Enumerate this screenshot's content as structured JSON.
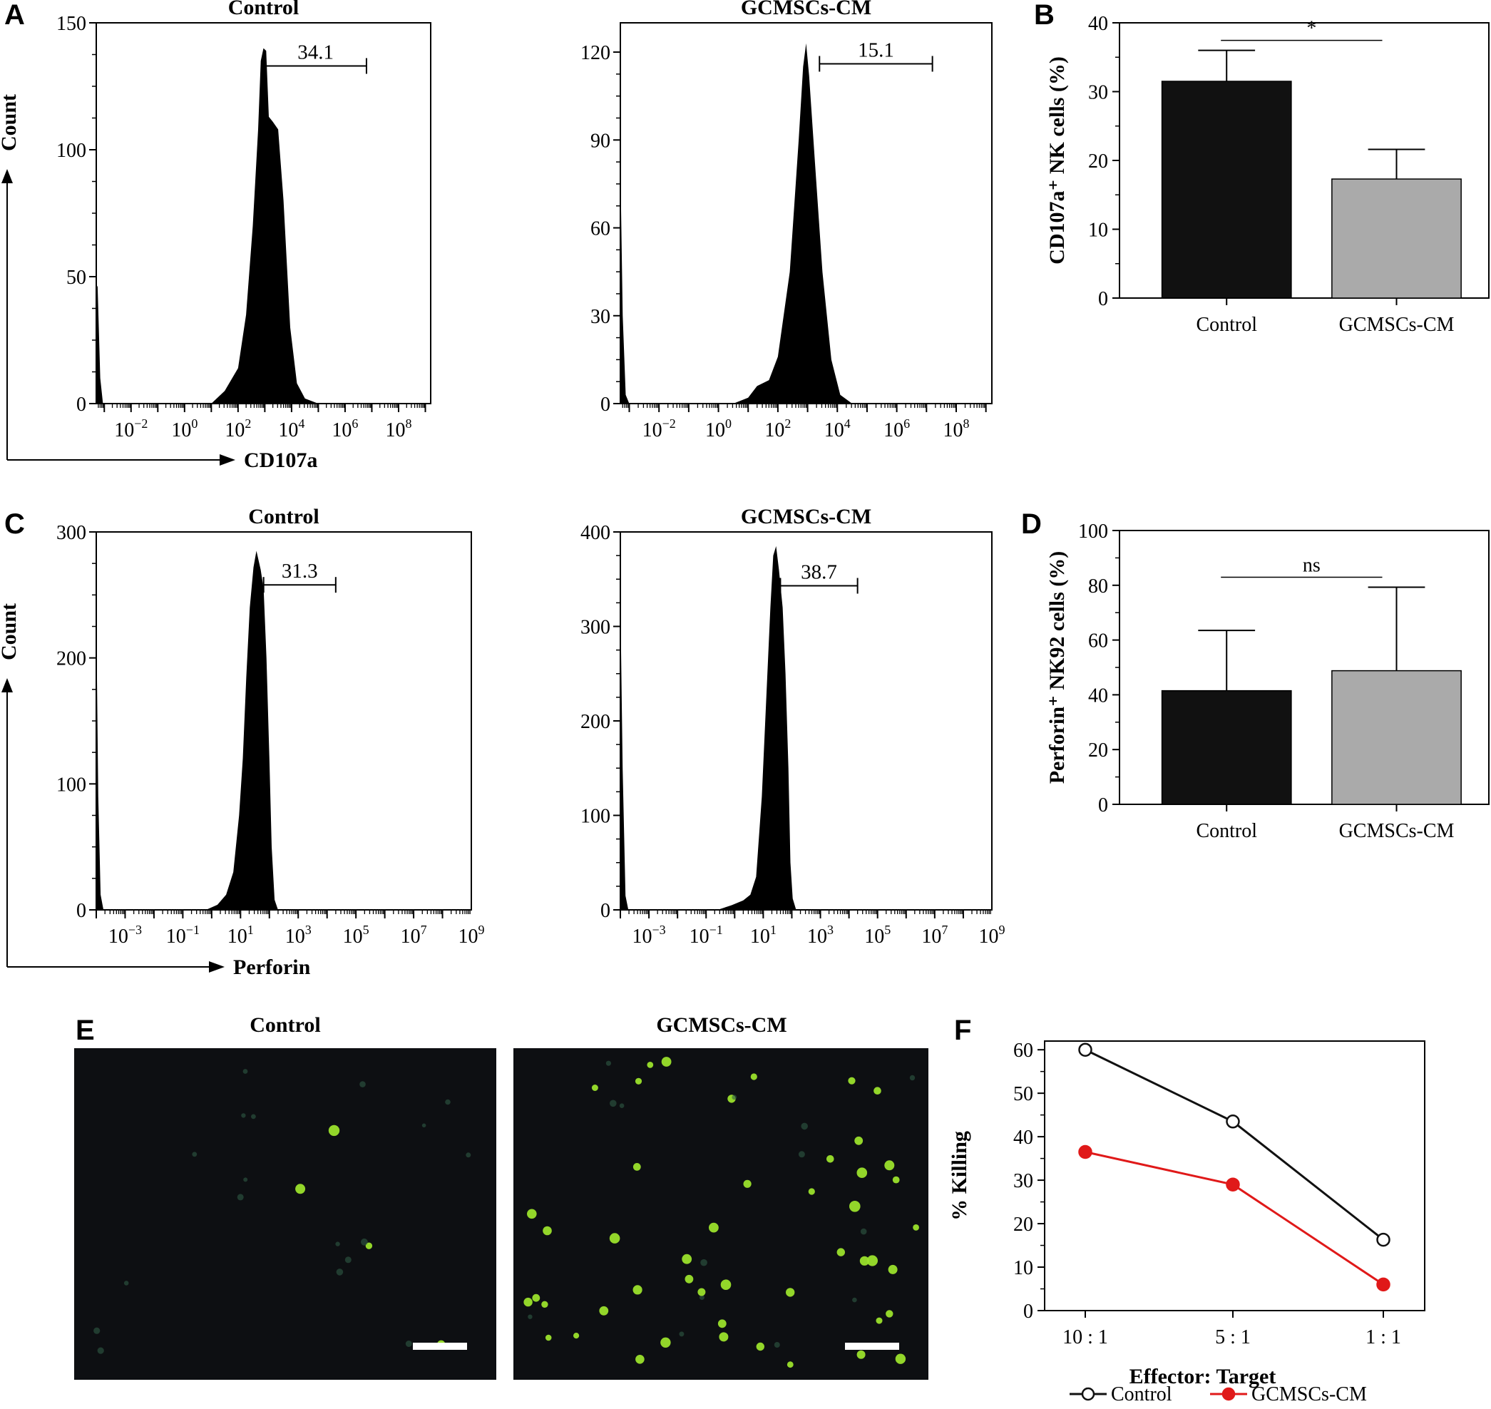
{
  "figure": {
    "panels": {
      "A": {
        "letter": "A"
      },
      "B": {
        "letter": "B"
      },
      "C": {
        "letter": "C"
      },
      "D": {
        "letter": "D"
      },
      "E": {
        "letter": "E",
        "title_left": "Control",
        "title_right": "GCMSCs-CM"
      },
      "F": {
        "letter": "F"
      }
    },
    "colors": {
      "control": "#111111",
      "treated_bar": "#aaaaaa",
      "treated_line": "#e01919",
      "histogram_fill": "#000000",
      "micrograph_bg": "#0d0f12",
      "cell_green": "#9be22c"
    },
    "micrographs": {
      "control_cells": 22,
      "treated_cells": 62,
      "scale_bar": "white bar, bottom-right"
    }
  },
  "chart_data": [
    {
      "id": "A-control",
      "type": "area",
      "title": "Control",
      "xlabel": "CD107a",
      "ylabel": "Count",
      "xscale": "log",
      "xlim_log10": [
        -3.3,
        9.2
      ],
      "ylim": [
        0,
        150
      ],
      "yticks": [
        0,
        50,
        100,
        150
      ],
      "xticks": [
        {
          "base": "10",
          "exp": "−2"
        },
        {
          "base": "10",
          "exp": "0"
        },
        {
          "base": "10",
          "exp": "2"
        },
        {
          "base": "10",
          "exp": "4"
        },
        {
          "base": "10",
          "exp": "6"
        },
        {
          "base": "10",
          "exp": "8"
        }
      ],
      "xticks_log10": [
        -2,
        0,
        2,
        4,
        6,
        8
      ],
      "gate": {
        "label": "34.1",
        "from_log10": 3.0,
        "to_log10": 6.8,
        "y": 133
      },
      "histogram": [
        [
          -3.3,
          0
        ],
        [
          -3.3,
          47
        ],
        [
          -3.25,
          46
        ],
        [
          -3.15,
          10
        ],
        [
          -3.05,
          0
        ],
        [
          1.0,
          0
        ],
        [
          1.5,
          5
        ],
        [
          2.0,
          14
        ],
        [
          2.3,
          35
        ],
        [
          2.55,
          70
        ],
        [
          2.75,
          108
        ],
        [
          2.85,
          135
        ],
        [
          2.95,
          140
        ],
        [
          3.05,
          139
        ],
        [
          3.15,
          113
        ],
        [
          3.3,
          111
        ],
        [
          3.5,
          108
        ],
        [
          3.7,
          80
        ],
        [
          3.95,
          30
        ],
        [
          4.2,
          8
        ],
        [
          4.5,
          2
        ],
        [
          5.0,
          0
        ]
      ]
    },
    {
      "id": "A-gcmscs",
      "type": "area",
      "title": "GCMSCs-CM",
      "xlabel": "",
      "ylabel": "",
      "xscale": "log",
      "xlim_log10": [
        -3.3,
        9.2
      ],
      "ylim": [
        0,
        130
      ],
      "yticks": [
        0,
        30,
        60,
        90,
        120
      ],
      "xticks": [
        {
          "base": "10",
          "exp": "−2"
        },
        {
          "base": "10",
          "exp": "0"
        },
        {
          "base": "10",
          "exp": "2"
        },
        {
          "base": "10",
          "exp": "4"
        },
        {
          "base": "10",
          "exp": "6"
        },
        {
          "base": "10",
          "exp": "8"
        }
      ],
      "xticks_log10": [
        -2,
        0,
        2,
        4,
        6,
        8
      ],
      "gate": {
        "label": "15.1",
        "from_log10": 3.4,
        "to_log10": 7.2,
        "y": 116
      },
      "histogram": [
        [
          -3.3,
          0
        ],
        [
          -3.3,
          82
        ],
        [
          -3.22,
          30
        ],
        [
          -3.12,
          3
        ],
        [
          -3.0,
          0
        ],
        [
          0.5,
          0
        ],
        [
          1.0,
          2
        ],
        [
          1.3,
          6
        ],
        [
          1.7,
          8
        ],
        [
          2.0,
          16
        ],
        [
          2.4,
          45
        ],
        [
          2.7,
          90
        ],
        [
          2.85,
          115
        ],
        [
          2.95,
          123
        ],
        [
          3.05,
          112
        ],
        [
          3.25,
          82
        ],
        [
          3.5,
          45
        ],
        [
          3.8,
          15
        ],
        [
          4.1,
          3
        ],
        [
          4.5,
          0
        ]
      ]
    },
    {
      "id": "B",
      "type": "bar",
      "ylabel": "CD107a⁺ NK cells (%)",
      "categories": [
        "Control",
        "GCMSCs-CM"
      ],
      "values": [
        31.5,
        17.3
      ],
      "errors": [
        4.5,
        4.3
      ],
      "ylim": [
        0,
        40
      ],
      "yticks": [
        0,
        10,
        20,
        30,
        40
      ],
      "significance": "*"
    },
    {
      "id": "C-control",
      "type": "area",
      "title": "Control",
      "xlabel": "Perforin",
      "ylabel": "Count",
      "xscale": "log",
      "xlim_log10": [
        -4.0,
        9.0
      ],
      "ylim": [
        0,
        300
      ],
      "yticks": [
        0,
        100,
        200,
        300
      ],
      "xticks": [
        {
          "base": "10",
          "exp": "−3"
        },
        {
          "base": "10",
          "exp": "−1"
        },
        {
          "base": "10",
          "exp": "1"
        },
        {
          "base": "10",
          "exp": "3"
        },
        {
          "base": "10",
          "exp": "5"
        },
        {
          "base": "10",
          "exp": "7"
        },
        {
          "base": "10",
          "exp": "9"
        }
      ],
      "xticks_log10": [
        -3,
        -1,
        1,
        3,
        5,
        7,
        9
      ],
      "gate": {
        "label": "31.3",
        "from_log10": 1.8,
        "to_log10": 4.3,
        "y": 258
      },
      "histogram": [
        [
          -4.0,
          0
        ],
        [
          -4.0,
          235
        ],
        [
          -3.93,
          90
        ],
        [
          -3.85,
          12
        ],
        [
          -3.75,
          0
        ],
        [
          -0.2,
          0
        ],
        [
          0.2,
          4
        ],
        [
          0.5,
          12
        ],
        [
          0.75,
          30
        ],
        [
          0.95,
          75
        ],
        [
          1.08,
          120
        ],
        [
          1.2,
          185
        ],
        [
          1.32,
          240
        ],
        [
          1.45,
          272
        ],
        [
          1.55,
          285
        ],
        [
          1.7,
          270
        ],
        [
          1.8,
          255
        ],
        [
          1.9,
          200
        ],
        [
          2.0,
          120
        ],
        [
          2.08,
          50
        ],
        [
          2.18,
          8
        ],
        [
          2.3,
          0
        ]
      ]
    },
    {
      "id": "C-gcmscs",
      "type": "area",
      "title": "GCMSCs-CM",
      "xlabel": "",
      "ylabel": "",
      "xscale": "log",
      "xlim_log10": [
        -4.0,
        9.0
      ],
      "ylim": [
        0,
        400
      ],
      "yticks": [
        0,
        100,
        200,
        300,
        400
      ],
      "xticks": [
        {
          "base": "10",
          "exp": "−3"
        },
        {
          "base": "10",
          "exp": "−1"
        },
        {
          "base": "10",
          "exp": "1"
        },
        {
          "base": "10",
          "exp": "3"
        },
        {
          "base": "10",
          "exp": "5"
        },
        {
          "base": "10",
          "exp": "7"
        },
        {
          "base": "10",
          "exp": "9"
        }
      ],
      "xticks_log10": [
        -3,
        -1,
        1,
        3,
        5,
        7,
        9
      ],
      "gate": {
        "label": "38.7",
        "from_log10": 1.6,
        "to_log10": 4.3,
        "y": 343
      },
      "histogram": [
        [
          -4.0,
          0
        ],
        [
          -4.0,
          330
        ],
        [
          -3.92,
          150
        ],
        [
          -3.82,
          15
        ],
        [
          -3.72,
          0
        ],
        [
          -0.6,
          0
        ],
        [
          -0.1,
          5
        ],
        [
          0.3,
          10
        ],
        [
          0.55,
          16
        ],
        [
          0.75,
          35
        ],
        [
          0.95,
          120
        ],
        [
          1.1,
          220
        ],
        [
          1.25,
          320
        ],
        [
          1.35,
          375
        ],
        [
          1.45,
          385
        ],
        [
          1.55,
          360
        ],
        [
          1.68,
          320
        ],
        [
          1.78,
          250
        ],
        [
          1.88,
          150
        ],
        [
          1.95,
          50
        ],
        [
          2.03,
          12
        ],
        [
          2.15,
          0
        ]
      ]
    },
    {
      "id": "D",
      "type": "bar",
      "ylabel": "Perforin⁺ NK92 cells (%)",
      "categories": [
        "Control",
        "GCMSCs-CM"
      ],
      "values": [
        41.5,
        48.8
      ],
      "errors": [
        22.0,
        30.5
      ],
      "ylim": [
        0,
        100
      ],
      "yticks": [
        0,
        20,
        40,
        60,
        80,
        100
      ],
      "significance": "ns"
    },
    {
      "id": "F",
      "type": "line",
      "xlabel": "Effector: Target",
      "ylabel": "% Killing",
      "categories": [
        "10 : 1",
        "5 : 1",
        "1 : 1"
      ],
      "series": [
        {
          "name": "Control",
          "values": [
            60,
            43.5,
            16.3
          ],
          "marker": "open-circle"
        },
        {
          "name": "GCMSCs-CM",
          "values": [
            36.5,
            29,
            6
          ]
        }
      ],
      "ylim": [
        0,
        62
      ],
      "yticks": [
        0,
        10,
        20,
        30,
        40,
        50,
        60
      ],
      "legend": "bottom"
    }
  ]
}
